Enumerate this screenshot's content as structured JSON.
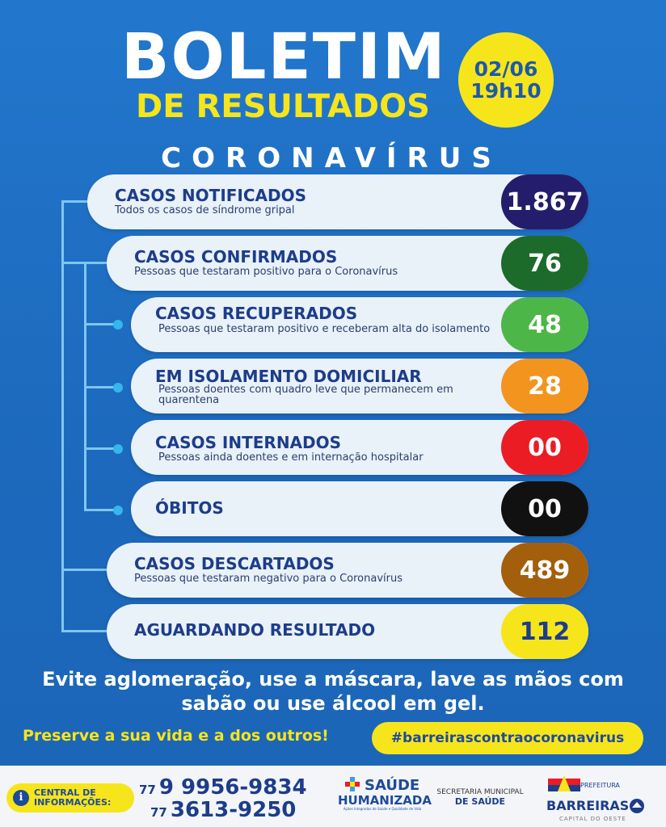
{
  "header": {
    "title": "BOLETIM",
    "subtitle": "DE RESULTADOS",
    "date": "02/06",
    "time": "19h10",
    "topic": "CORONAVÍRUS"
  },
  "rows": [
    {
      "label": "CASOS NOTIFICADOS",
      "desc": "Todos os casos de síndrome gripal",
      "value": "1.867",
      "color": "#231d6b"
    },
    {
      "label": "CASOS CONFIRMADOS",
      "desc": "Pessoas que testaram positivo para o Coronavírus",
      "value": "76",
      "color": "#1d6b2a"
    },
    {
      "label": "CASOS RECUPERADOS",
      "desc": "Pessoas que testaram positivo e receberam alta do isolamento",
      "value": "48",
      "color": "#4cb748"
    },
    {
      "label": "EM ISOLAMENTO DOMICILIAR",
      "desc": "Pessoas doentes com quadro leve que permanecem em quarentena",
      "value": "28",
      "color": "#f3941e"
    },
    {
      "label": "CASOS INTERNADOS",
      "desc": "Pessoas ainda doentes e em internação hospitalar",
      "value": "00",
      "color": "#ec1c24"
    },
    {
      "label": "ÓBITOS",
      "desc": "",
      "value": "00",
      "color": "#111111"
    },
    {
      "label": "CASOS DESCARTADOS",
      "desc": "Pessoas que testaram negativo para o Coronavírus",
      "value": "489",
      "color": "#a35f0c"
    },
    {
      "label": "AGUARDANDO RESULTADO",
      "desc": "",
      "value": "112",
      "color": "#f7e51c"
    }
  ],
  "message": {
    "line1": "Evite aglomeração, use a máscara, lave as mãos com",
    "line2": "sabão ou use álcool em gel.",
    "preserve": "Preserve a sua vida e a dos outros!",
    "hashtag": "#barreirascontraocoronavirus"
  },
  "footer": {
    "central_line1": "CENTRAL DE",
    "central_line2": "INFORMAÇÕES:",
    "ddd1": "77",
    "phone1": "9 9956-9834",
    "ddd2": "77",
    "phone2": "3613-9250",
    "saude_line1": "SAÚDE",
    "saude_line2": "HUMANIZADA",
    "saude_tagline": "Ações Integradas de Saúde e Qualidade de Vida",
    "secretaria_line1": "SECRETARIA MUNICIPAL",
    "secretaria_line2": "DE SAÚDE",
    "prefeitura": "PREFEITURA",
    "city": "BARREIRAS",
    "city_tagline": "CAPITAL DO OESTE"
  },
  "colors": {
    "background": "#1e6fc4",
    "accent_yellow": "#f7e51c",
    "navy": "#1d3d8a"
  }
}
